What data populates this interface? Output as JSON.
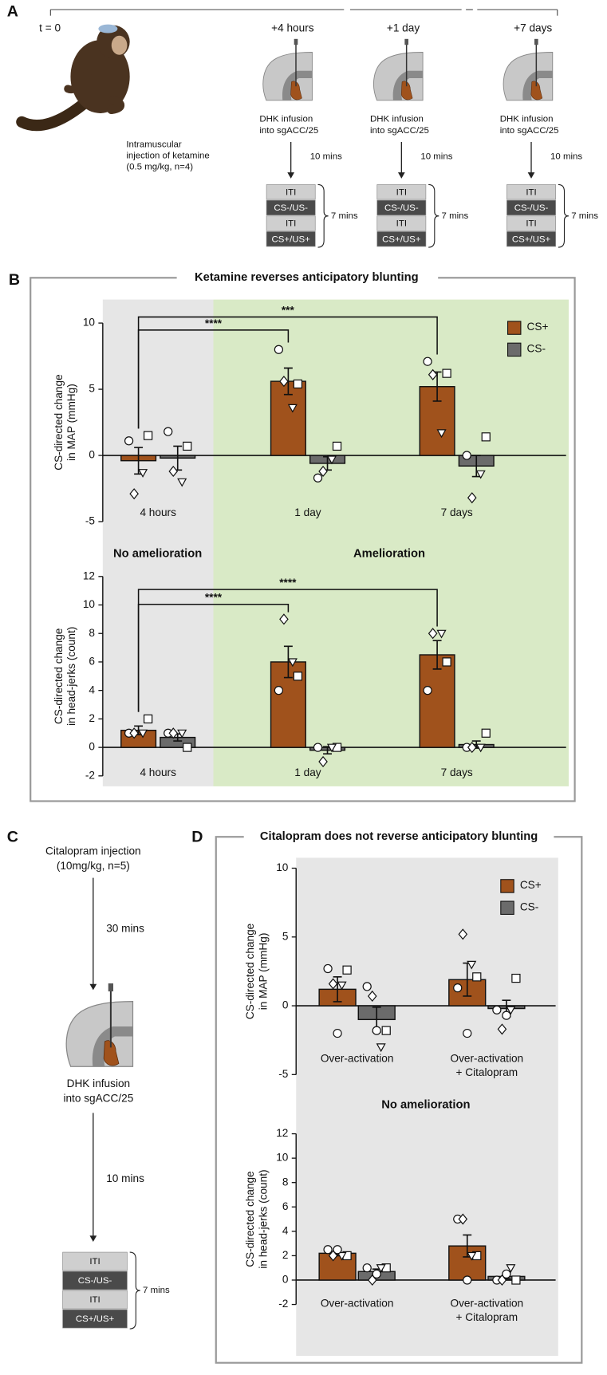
{
  "panel_a": {
    "label": "A",
    "start": "t = 0",
    "injection": [
      "Intramuscular",
      "injection of ketamine",
      "(0.5 mg/kg, n=4)"
    ],
    "timepoints": [
      {
        "time": "+4 hours",
        "infusion": [
          "DHK infusion",
          "into sgACC/25"
        ],
        "delay": "10 mins"
      },
      {
        "time": "+1 day",
        "infusion": [
          "DHK infusion",
          "into sgACC/25"
        ],
        "delay": "10 mins"
      },
      {
        "time": "+7 days",
        "infusion": [
          "DHK infusion",
          "into sgACC/25"
        ],
        "delay": "10 mins"
      }
    ],
    "trial_blocks": [
      "ITI",
      "CS-/US-",
      "ITI",
      "CS+/US+"
    ],
    "block_duration": "7 mins"
  },
  "panel_b": {
    "label": "B",
    "title": "Ketamine reverses anticipatory blunting",
    "regions": [
      "No amelioration",
      "Amelioration"
    ]
  },
  "panel_c": {
    "label": "C",
    "injection": [
      "Citalopram injection",
      "(10mg/kg, n=5)"
    ],
    "delay_1": "30 mins",
    "infusion": [
      "DHK infusion",
      "into sgACC/25"
    ],
    "delay_2": "10 mins",
    "trial_blocks": [
      "ITI",
      "CS-/US-",
      "ITI",
      "CS+/US+"
    ],
    "block_duration": "7 mins"
  },
  "panel_d": {
    "label": "D",
    "title": "Citalopram does not reverse anticipatory blunting",
    "region": "No amelioration"
  },
  "chart_data": [
    {
      "type": "bar",
      "y_label": [
        "CS-directed change",
        "in MAP (mmHg)"
      ],
      "categories": [
        "4 hours",
        "1 day",
        "7 days"
      ],
      "markers": [
        "circle",
        "square",
        "diamond",
        "triangle"
      ],
      "legend": true,
      "series": [
        {
          "name": "CS+",
          "color": "#a0521c",
          "values": [
            -0.4,
            5.6,
            5.2
          ],
          "errors": [
            1.0,
            1.0,
            1.1
          ],
          "points": [
            [
              1.1,
              1.5,
              -2.9,
              -1.3
            ],
            [
              8.0,
              5.4,
              5.6,
              3.6
            ],
            [
              7.1,
              6.2,
              6.1,
              1.7
            ]
          ]
        },
        {
          "name": "CS-",
          "color": "#6b6b6b",
          "values": [
            -0.2,
            -0.6,
            -0.8
          ],
          "errors": [
            0.9,
            0.5,
            0.8
          ],
          "points": [
            [
              1.8,
              0.7,
              -1.2,
              -2.0
            ],
            [
              -1.7,
              0.7,
              -1.2,
              -0.3
            ],
            [
              0.0,
              1.4,
              -3.2,
              -1.4
            ]
          ]
        }
      ],
      "significance": [
        "****",
        "***"
      ],
      "ylim": [
        -5,
        10
      ],
      "yticks": [
        -5,
        0,
        5,
        10
      ]
    },
    {
      "type": "bar",
      "y_label": [
        "CS-directed change",
        "in head-jerks (count)"
      ],
      "categories": [
        "4 hours",
        "1 day",
        "7 days"
      ],
      "markers": [
        "circle",
        "square",
        "diamond",
        "triangle"
      ],
      "legend": false,
      "series": [
        {
          "name": "CS+",
          "color": "#a0521c",
          "values": [
            1.2,
            6.0,
            6.5
          ],
          "errors": [
            0.3,
            1.1,
            1.0
          ],
          "points": [
            [
              1,
              2,
              1,
              1
            ],
            [
              4,
              5,
              9,
              6
            ],
            [
              4,
              6,
              8,
              8
            ]
          ]
        },
        {
          "name": "CS-",
          "color": "#6b6b6b",
          "values": [
            0.7,
            -0.2,
            0.2
          ],
          "errors": [
            0.25,
            0.25,
            0.25
          ],
          "points": [
            [
              1,
              0,
              1,
              1
            ],
            [
              0,
              0,
              -1,
              0
            ],
            [
              0,
              1,
              0,
              0
            ]
          ]
        }
      ],
      "significance": [
        "****",
        "****"
      ],
      "ylim": [
        -2,
        12
      ],
      "yticks": [
        -2,
        0,
        2,
        4,
        6,
        8,
        10,
        12
      ]
    },
    {
      "type": "bar",
      "y_label": [
        "CS-directed change",
        "in MAP (mmHg)"
      ],
      "categories": [
        "Over-activation",
        "Over-activation\n+ Citalopram"
      ],
      "markers": [
        "circle",
        "square",
        "diamond",
        "triangle",
        "circle"
      ],
      "legend": true,
      "series": [
        {
          "name": "CS+",
          "color": "#a0521c",
          "values": [
            1.2,
            1.9
          ],
          "errors": [
            0.9,
            1.2
          ],
          "points": [
            [
              2.7,
              2.6,
              1.6,
              1.5,
              -2.0
            ],
            [
              1.3,
              2.1,
              5.2,
              3.0,
              -2.0
            ]
          ]
        },
        {
          "name": "CS-",
          "color": "#6b6b6b",
          "values": [
            -1.0,
            -0.2
          ],
          "errors": [
            0.9,
            0.6
          ],
          "points": [
            [
              1.4,
              -1.8,
              0.7,
              -3.0,
              -1.8
            ],
            [
              -0.3,
              2.0,
              -1.7,
              -0.3,
              -0.7
            ]
          ]
        }
      ],
      "significance": [],
      "ylim": [
        -5,
        10
      ],
      "yticks": [
        -5,
        0,
        5,
        10
      ]
    },
    {
      "type": "bar",
      "y_label": [
        "CS-directed change",
        "in head-jerks (count)"
      ],
      "categories": [
        "Over-activation",
        "Over-activation\n+ Citalopram"
      ],
      "markers": [
        "circle",
        "square",
        "diamond",
        "triangle",
        "circle"
      ],
      "legend": false,
      "series": [
        {
          "name": "CS+",
          "color": "#a0521c",
          "values": [
            2.2,
            2.8
          ],
          "errors": [
            0.2,
            0.9
          ],
          "points": [
            [
              2.5,
              2,
              2,
              2,
              2.5
            ],
            [
              5,
              2,
              5,
              2,
              0
            ]
          ]
        },
        {
          "name": "CS-",
          "color": "#6b6b6b",
          "values": [
            0.7,
            0.3
          ],
          "errors": [
            0.2,
            0.2
          ],
          "points": [
            [
              1,
              1,
              0,
              1,
              0.5
            ],
            [
              0,
              0,
              0,
              1,
              0.5
            ]
          ]
        }
      ],
      "significance": [],
      "ylim": [
        -2,
        12
      ],
      "yticks": [
        -2,
        0,
        2,
        4,
        6,
        8,
        10,
        12
      ]
    }
  ]
}
